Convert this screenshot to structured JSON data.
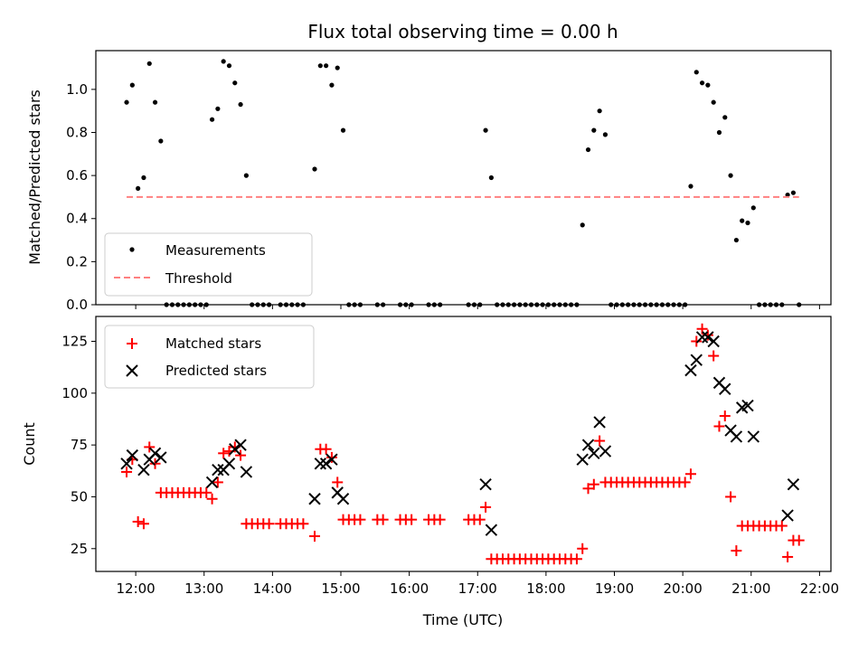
{
  "figure": {
    "title": "Flux total observing time = 0.00 h",
    "xlabel": "Time (UTC)"
  },
  "chart_data": [
    {
      "type": "scatter",
      "ylabel": "Matched/Predicted stars",
      "xlim": [
        "11:25",
        "22:10"
      ],
      "ylim": [
        0,
        1.18
      ],
      "yticks": [
        "0.0",
        "0.2",
        "0.4",
        "0.6",
        "0.8",
        "1.0"
      ],
      "xticks": [
        "12:00",
        "13:00",
        "14:00",
        "15:00",
        "16:00",
        "17:00",
        "18:00",
        "19:00",
        "20:00",
        "21:00",
        "22:00"
      ],
      "show_xtick_labels": false,
      "legend": {
        "position": "lower-left",
        "entries": [
          "Measurements",
          "Threshold"
        ]
      },
      "series": [
        {
          "name": "Measurements",
          "marker": "dot",
          "color": "#000000",
          "points": [
            [
              "11:52",
              0.94
            ],
            [
              "11:57",
              1.02
            ],
            [
              "12:02",
              0.54
            ],
            [
              "12:07",
              0.59
            ],
            [
              "12:12",
              1.12
            ],
            [
              "12:17",
              0.94
            ],
            [
              "12:22",
              0.76
            ],
            [
              "12:27",
              0.0
            ],
            [
              "12:32",
              0.0
            ],
            [
              "12:37",
              0.0
            ],
            [
              "12:42",
              0.0
            ],
            [
              "12:47",
              0.0
            ],
            [
              "12:52",
              0.0
            ],
            [
              "12:57",
              0.0
            ],
            [
              "13:02",
              0.0
            ],
            [
              "13:07",
              0.86
            ],
            [
              "13:12",
              0.91
            ],
            [
              "13:17",
              1.13
            ],
            [
              "13:22",
              1.11
            ],
            [
              "13:27",
              1.03
            ],
            [
              "13:32",
              0.93
            ],
            [
              "13:37",
              0.6
            ],
            [
              "13:42",
              0.0
            ],
            [
              "13:47",
              0.0
            ],
            [
              "13:52",
              0.0
            ],
            [
              "13:57",
              0.0
            ],
            [
              "14:07",
              0.0
            ],
            [
              "14:12",
              0.0
            ],
            [
              "14:17",
              0.0
            ],
            [
              "14:22",
              0.0
            ],
            [
              "14:27",
              0.0
            ],
            [
              "14:37",
              0.63
            ],
            [
              "14:42",
              1.11
            ],
            [
              "14:47",
              1.11
            ],
            [
              "14:52",
              1.02
            ],
            [
              "14:57",
              1.1
            ],
            [
              "15:02",
              0.81
            ],
            [
              "15:07",
              0.0
            ],
            [
              "15:12",
              0.0
            ],
            [
              "15:17",
              0.0
            ],
            [
              "15:32",
              0.0
            ],
            [
              "15:37",
              0.0
            ],
            [
              "15:52",
              0.0
            ],
            [
              "15:57",
              0.0
            ],
            [
              "16:02",
              0.0
            ],
            [
              "16:17",
              0.0
            ],
            [
              "16:22",
              0.0
            ],
            [
              "16:27",
              0.0
            ],
            [
              "16:52",
              0.0
            ],
            [
              "16:57",
              0.0
            ],
            [
              "17:02",
              0.0
            ],
            [
              "17:07",
              0.81
            ],
            [
              "17:12",
              0.59
            ],
            [
              "17:17",
              0.0
            ],
            [
              "17:22",
              0.0
            ],
            [
              "17:27",
              0.0
            ],
            [
              "17:32",
              0.0
            ],
            [
              "17:37",
              0.0
            ],
            [
              "17:42",
              0.0
            ],
            [
              "17:47",
              0.0
            ],
            [
              "17:52",
              0.0
            ],
            [
              "17:57",
              0.0
            ],
            [
              "18:02",
              0.0
            ],
            [
              "18:07",
              0.0
            ],
            [
              "18:12",
              0.0
            ],
            [
              "18:17",
              0.0
            ],
            [
              "18:22",
              0.0
            ],
            [
              "18:27",
              0.0
            ],
            [
              "18:32",
              0.37
            ],
            [
              "18:37",
              0.72
            ],
            [
              "18:42",
              0.81
            ],
            [
              "18:47",
              0.9
            ],
            [
              "18:52",
              0.79
            ],
            [
              "18:57",
              0.0
            ],
            [
              "19:02",
              0.0
            ],
            [
              "19:07",
              0.0
            ],
            [
              "19:12",
              0.0
            ],
            [
              "19:17",
              0.0
            ],
            [
              "19:22",
              0.0
            ],
            [
              "19:27",
              0.0
            ],
            [
              "19:32",
              0.0
            ],
            [
              "19:37",
              0.0
            ],
            [
              "19:42",
              0.0
            ],
            [
              "19:47",
              0.0
            ],
            [
              "19:52",
              0.0
            ],
            [
              "19:57",
              0.0
            ],
            [
              "20:02",
              0.0
            ],
            [
              "20:07",
              0.55
            ],
            [
              "20:12",
              1.08
            ],
            [
              "20:17",
              1.03
            ],
            [
              "20:22",
              1.02
            ],
            [
              "20:27",
              0.94
            ],
            [
              "20:32",
              0.8
            ],
            [
              "20:37",
              0.87
            ],
            [
              "20:42",
              0.6
            ],
            [
              "20:47",
              0.3
            ],
            [
              "20:52",
              0.39
            ],
            [
              "20:57",
              0.38
            ],
            [
              "21:02",
              0.45
            ],
            [
              "21:07",
              0.0
            ],
            [
              "21:12",
              0.0
            ],
            [
              "21:17",
              0.0
            ],
            [
              "21:22",
              0.0
            ],
            [
              "21:27",
              0.0
            ],
            [
              "21:32",
              0.51
            ],
            [
              "21:37",
              0.52
            ],
            [
              "21:42",
              0.0
            ]
          ]
        },
        {
          "name": "Threshold",
          "line": "dashed",
          "color": "#ff8080",
          "points": [
            [
              "11:52",
              0.5
            ],
            [
              "21:42",
              0.5
            ]
          ]
        }
      ]
    },
    {
      "type": "scatter",
      "ylabel": "Count",
      "xlim": [
        "11:25",
        "22:10"
      ],
      "ylim": [
        14,
        137
      ],
      "yticks": [
        "25",
        "50",
        "75",
        "100",
        "125"
      ],
      "xticks": [
        "12:00",
        "13:00",
        "14:00",
        "15:00",
        "16:00",
        "17:00",
        "18:00",
        "19:00",
        "20:00",
        "21:00",
        "22:00"
      ],
      "legend": {
        "position": "upper-left",
        "entries": [
          "Matched stars",
          "Predicted stars"
        ]
      },
      "series": [
        {
          "name": "Matched stars",
          "marker": "plus",
          "color": "#ff0000",
          "points": [
            [
              "11:52",
              62
            ],
            [
              "11:57",
              68
            ],
            [
              "12:02",
              38
            ],
            [
              "12:07",
              37
            ],
            [
              "12:12",
              74
            ],
            [
              "12:17",
              66
            ],
            [
              "12:22",
              52
            ],
            [
              "12:27",
              52
            ],
            [
              "12:32",
              52
            ],
            [
              "12:37",
              52
            ],
            [
              "12:42",
              52
            ],
            [
              "12:47",
              52
            ],
            [
              "12:52",
              52
            ],
            [
              "12:57",
              52
            ],
            [
              "13:02",
              52
            ],
            [
              "13:07",
              49
            ],
            [
              "13:12",
              57
            ],
            [
              "13:17",
              71
            ],
            [
              "13:22",
              72
            ],
            [
              "13:27",
              74
            ],
            [
              "13:32",
              70
            ],
            [
              "13:37",
              37
            ],
            [
              "13:42",
              37
            ],
            [
              "13:47",
              37
            ],
            [
              "13:52",
              37
            ],
            [
              "13:57",
              37
            ],
            [
              "14:07",
              37
            ],
            [
              "14:12",
              37
            ],
            [
              "14:17",
              37
            ],
            [
              "14:22",
              37
            ],
            [
              "14:27",
              37
            ],
            [
              "14:37",
              31
            ],
            [
              "14:42",
              73
            ],
            [
              "14:47",
              73
            ],
            [
              "14:52",
              69
            ],
            [
              "14:57",
              57
            ],
            [
              "15:02",
              39
            ],
            [
              "15:07",
              39
            ],
            [
              "15:12",
              39
            ],
            [
              "15:17",
              39
            ],
            [
              "15:32",
              39
            ],
            [
              "15:37",
              39
            ],
            [
              "15:52",
              39
            ],
            [
              "15:57",
              39
            ],
            [
              "16:02",
              39
            ],
            [
              "16:17",
              39
            ],
            [
              "16:22",
              39
            ],
            [
              "16:27",
              39
            ],
            [
              "16:52",
              39
            ],
            [
              "16:57",
              39
            ],
            [
              "17:02",
              39
            ],
            [
              "17:07",
              45
            ],
            [
              "17:12",
              20
            ],
            [
              "17:17",
              20
            ],
            [
              "17:22",
              20
            ],
            [
              "17:27",
              20
            ],
            [
              "17:32",
              20
            ],
            [
              "17:37",
              20
            ],
            [
              "17:42",
              20
            ],
            [
              "17:47",
              20
            ],
            [
              "17:52",
              20
            ],
            [
              "17:57",
              20
            ],
            [
              "18:02",
              20
            ],
            [
              "18:07",
              20
            ],
            [
              "18:12",
              20
            ],
            [
              "18:17",
              20
            ],
            [
              "18:22",
              20
            ],
            [
              "18:27",
              20
            ],
            [
              "18:32",
              25
            ],
            [
              "18:37",
              54
            ],
            [
              "18:42",
              56
            ],
            [
              "18:47",
              77
            ],
            [
              "18:52",
              57
            ],
            [
              "18:57",
              57
            ],
            [
              "19:02",
              57
            ],
            [
              "19:07",
              57
            ],
            [
              "19:12",
              57
            ],
            [
              "19:17",
              57
            ],
            [
              "19:22",
              57
            ],
            [
              "19:27",
              57
            ],
            [
              "19:32",
              57
            ],
            [
              "19:37",
              57
            ],
            [
              "19:42",
              57
            ],
            [
              "19:47",
              57
            ],
            [
              "19:52",
              57
            ],
            [
              "19:57",
              57
            ],
            [
              "20:02",
              57
            ],
            [
              "20:07",
              61
            ],
            [
              "20:12",
              125
            ],
            [
              "20:17",
              131
            ],
            [
              "20:22",
              128
            ],
            [
              "20:27",
              118
            ],
            [
              "20:32",
              84
            ],
            [
              "20:37",
              89
            ],
            [
              "20:42",
              50
            ],
            [
              "20:47",
              24
            ],
            [
              "20:52",
              36
            ],
            [
              "20:57",
              36
            ],
            [
              "21:02",
              36
            ],
            [
              "21:07",
              36
            ],
            [
              "21:12",
              36
            ],
            [
              "21:17",
              36
            ],
            [
              "21:22",
              36
            ],
            [
              "21:27",
              36
            ],
            [
              "21:32",
              21
            ],
            [
              "21:37",
              29
            ],
            [
              "21:42",
              29
            ]
          ]
        },
        {
          "name": "Predicted stars",
          "marker": "x",
          "color": "#000000",
          "points": [
            [
              "11:52",
              66
            ],
            [
              "11:57",
              70
            ],
            [
              "12:07",
              63
            ],
            [
              "12:12",
              68
            ],
            [
              "12:17",
              71
            ],
            [
              "12:22",
              69
            ],
            [
              "13:07",
              57
            ],
            [
              "13:12",
              63
            ],
            [
              "13:17",
              63
            ],
            [
              "13:22",
              66
            ],
            [
              "13:27",
              73
            ],
            [
              "13:32",
              75
            ],
            [
              "13:37",
              62
            ],
            [
              "14:37",
              49
            ],
            [
              "14:42",
              66
            ],
            [
              "14:47",
              66
            ],
            [
              "14:52",
              68
            ],
            [
              "14:57",
              52
            ],
            [
              "15:02",
              49
            ],
            [
              "17:07",
              56
            ],
            [
              "17:12",
              34
            ],
            [
              "18:32",
              68
            ],
            [
              "18:37",
              75
            ],
            [
              "18:42",
              71
            ],
            [
              "18:47",
              86
            ],
            [
              "18:52",
              72
            ],
            [
              "20:07",
              111
            ],
            [
              "20:12",
              116
            ],
            [
              "20:17",
              127
            ],
            [
              "20:22",
              127
            ],
            [
              "20:27",
              125
            ],
            [
              "20:32",
              105
            ],
            [
              "20:37",
              102
            ],
            [
              "20:42",
              82
            ],
            [
              "20:47",
              79
            ],
            [
              "20:52",
              93
            ],
            [
              "20:57",
              94
            ],
            [
              "21:02",
              79
            ],
            [
              "21:32",
              41
            ],
            [
              "21:37",
              56
            ]
          ]
        }
      ]
    }
  ]
}
